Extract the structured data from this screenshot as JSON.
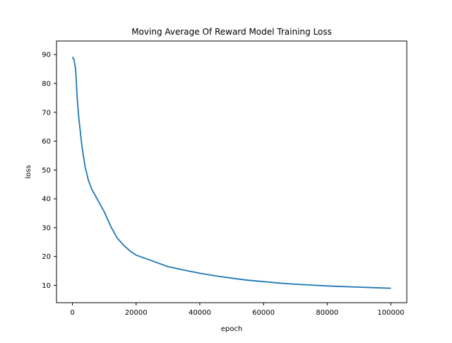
{
  "chart_data": {
    "type": "line",
    "title": "Moving Average Of Reward Model Training Loss",
    "xlabel": "epoch",
    "ylabel": "loss",
    "xlim": [
      -5000,
      105000
    ],
    "ylim": [
      4.0,
      94.7
    ],
    "xticks": [
      0,
      20000,
      40000,
      60000,
      80000,
      100000
    ],
    "yticks": [
      10,
      20,
      30,
      40,
      50,
      60,
      70,
      80,
      90
    ],
    "grid": false,
    "legend": "none",
    "series": [
      {
        "color": "#1f77b4",
        "x": [
          0,
          500,
          1000,
          1500,
          2000,
          3000,
          4000,
          5000,
          6000,
          8000,
          10000,
          12000,
          14000,
          16000,
          18000,
          20000,
          25000,
          30000,
          35000,
          40000,
          45000,
          50000,
          55000,
          60000,
          65000,
          70000,
          75000,
          80000,
          85000,
          90000,
          95000,
          100000
        ],
        "y": [
          89.2,
          88.2,
          85.0,
          75.0,
          68.0,
          58.0,
          51.0,
          46.5,
          43.5,
          39.5,
          35.5,
          30.5,
          26.5,
          24.0,
          22.0,
          20.5,
          18.5,
          16.5,
          15.3,
          14.2,
          13.3,
          12.5,
          11.8,
          11.3,
          10.8,
          10.4,
          10.1,
          9.8,
          9.6,
          9.4,
          9.2,
          9.0
        ]
      }
    ]
  }
}
